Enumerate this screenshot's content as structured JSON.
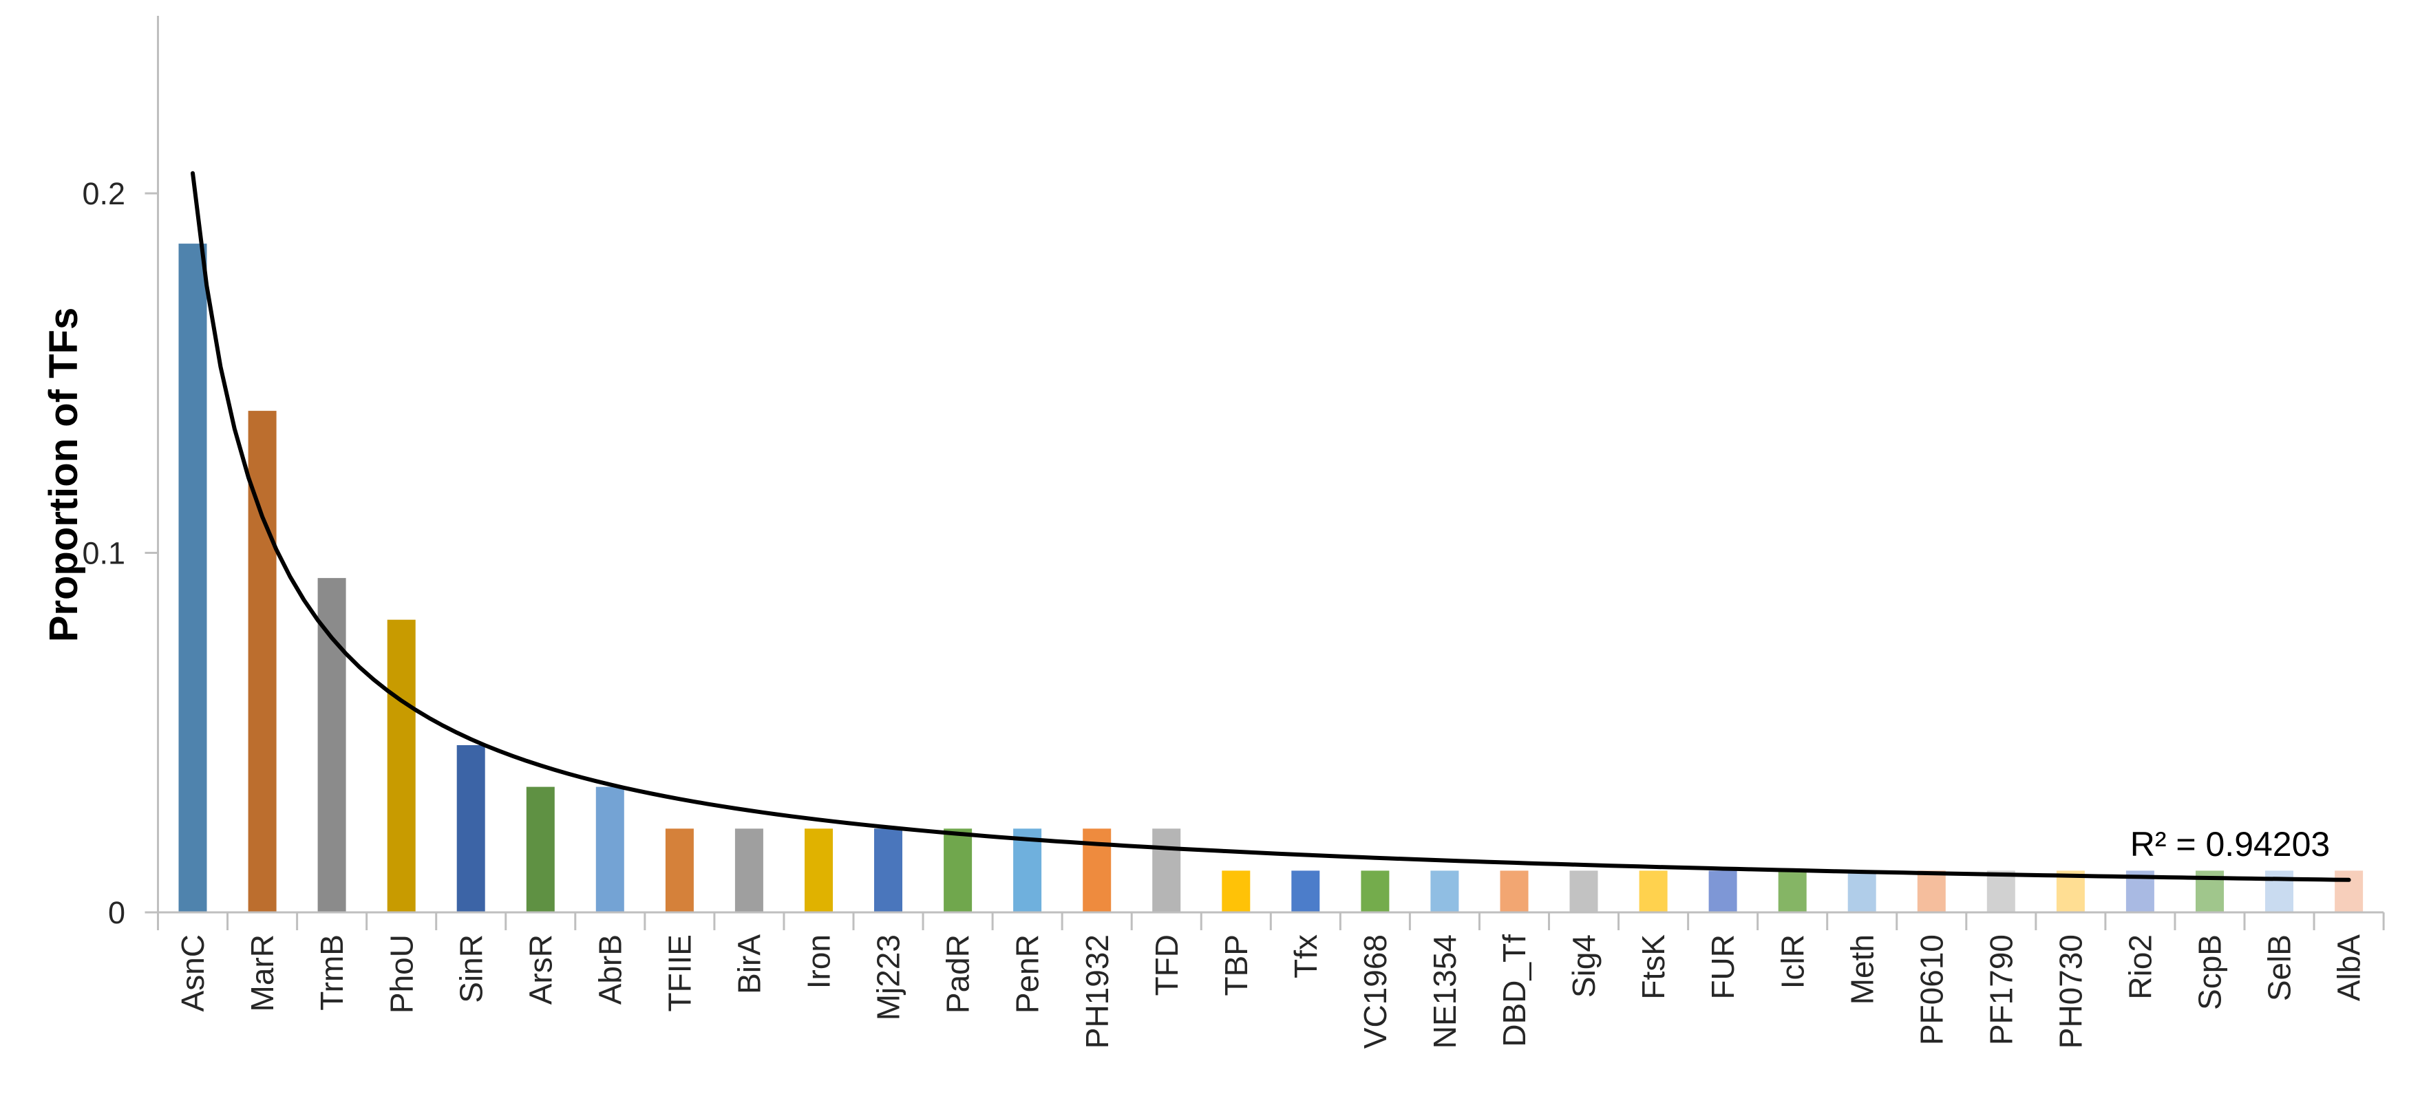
{
  "chart_data": {
    "type": "bar",
    "title": "",
    "xlabel": "",
    "ylabel": "Proportion of TFs",
    "ylim": [
      0,
      0.25
    ],
    "yticks": [
      0,
      0.1,
      0.2
    ],
    "ytick_labels": [
      "0",
      "0.1",
      "0.2"
    ],
    "grid": false,
    "legend_position": "none",
    "categories": [
      "AsnC",
      "MarR",
      "TrmB",
      "PhoU",
      "SinR",
      "ArsR",
      "AbrB",
      "TFIIE",
      "BirA",
      "Iron",
      "Mj223",
      "PadR",
      "PenR",
      "PH1932",
      "TFD",
      "TBP",
      "Tfx",
      "VC1968",
      "NE1354",
      "DBD_Tf",
      "Sig4",
      "FtsK",
      "FUR",
      "IclR",
      "Meth",
      "PF0610",
      "PF1790",
      "PH0730",
      "Rio2",
      "ScpB",
      "SelB",
      "AlbA"
    ],
    "values": [
      0.186,
      0.1395,
      0.093,
      0.0814,
      0.0465,
      0.0349,
      0.0349,
      0.0233,
      0.0233,
      0.0233,
      0.0233,
      0.0233,
      0.0233,
      0.0233,
      0.0233,
      0.0116,
      0.0116,
      0.0116,
      0.0116,
      0.0116,
      0.0116,
      0.0116,
      0.0116,
      0.0116,
      0.0116,
      0.0116,
      0.0116,
      0.0116,
      0.0116,
      0.0116,
      0.0116,
      0.0116
    ],
    "bar_colors": [
      "#4F83AD",
      "#BC6E2E",
      "#8B8B8B",
      "#C89B00",
      "#3C64A6",
      "#5F9143",
      "#74A3D4",
      "#D5813A",
      "#9F9F9F",
      "#E0B200",
      "#4A76BC",
      "#70A74D",
      "#6FB0DD",
      "#EE8B3E",
      "#B5B5B5",
      "#FFC207",
      "#4C7DCA",
      "#74AC4C",
      "#90BEE3",
      "#F2A672",
      "#C2C2C2",
      "#FFD24E",
      "#7E97D6",
      "#85B565",
      "#B0CDE9",
      "#F5BE9D",
      "#D1D1D1",
      "#FFDE93",
      "#A9BAE3",
      "#A0C68C",
      "#C9DBF0",
      "#F7CFBB"
    ],
    "trendline": {
      "type": "power",
      "a": 0.2056,
      "b": -0.9018,
      "r2_label": "R² = 0.94203",
      "color": "#000000"
    },
    "colors": {
      "axis": "#BFBFBF",
      "tick_text": "#262626",
      "label_text": "#262626",
      "title_text": "#000000",
      "background": "#FFFFFF"
    }
  }
}
